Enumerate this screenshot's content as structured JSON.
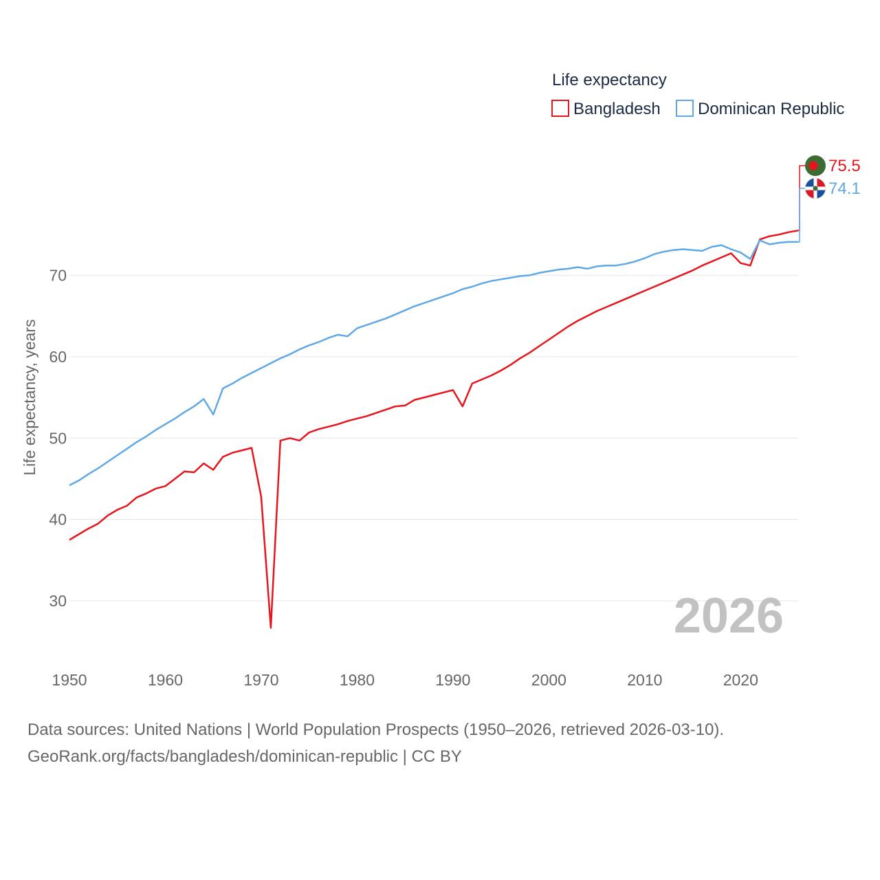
{
  "chart_data": {
    "type": "line",
    "title": "Life expectancy",
    "xlabel": "",
    "ylabel": "Life expectancy, years",
    "xlim": [
      1950,
      2026
    ],
    "ylim": [
      23,
      80
    ],
    "x_ticks": [
      1950,
      1960,
      1970,
      1980,
      1990,
      2000,
      2010,
      2020
    ],
    "y_ticks": [
      30,
      40,
      50,
      60,
      70
    ],
    "grid": true,
    "legend_position": "top-right",
    "year_label": "2026",
    "x": [
      1950,
      1951,
      1952,
      1953,
      1954,
      1955,
      1956,
      1957,
      1958,
      1959,
      1960,
      1961,
      1962,
      1963,
      1964,
      1965,
      1966,
      1967,
      1968,
      1969,
      1970,
      1971,
      1972,
      1973,
      1974,
      1975,
      1976,
      1977,
      1978,
      1979,
      1980,
      1981,
      1982,
      1983,
      1984,
      1985,
      1986,
      1987,
      1988,
      1989,
      1990,
      1991,
      1992,
      1993,
      1994,
      1995,
      1996,
      1997,
      1998,
      1999,
      2000,
      2001,
      2002,
      2003,
      2004,
      2005,
      2006,
      2007,
      2008,
      2009,
      2010,
      2011,
      2012,
      2013,
      2014,
      2015,
      2016,
      2017,
      2018,
      2019,
      2020,
      2021,
      2022,
      2023,
      2024,
      2025,
      2026
    ],
    "series": [
      {
        "name": "Bangladesh",
        "color": "#e8141c",
        "end_label": "75.5",
        "values": [
          37.5,
          38.2,
          38.9,
          39.5,
          40.5,
          41.2,
          41.7,
          42.7,
          43.2,
          43.8,
          44.1,
          45.0,
          45.9,
          45.8,
          46.9,
          46.1,
          47.7,
          48.2,
          48.5,
          48.8,
          42.8,
          26.7,
          49.7,
          50.0,
          49.7,
          50.7,
          51.1,
          51.4,
          51.7,
          52.1,
          52.4,
          52.7,
          53.1,
          53.5,
          53.9,
          54.0,
          54.7,
          55.0,
          55.3,
          55.6,
          55.9,
          53.9,
          56.7,
          57.2,
          57.7,
          58.3,
          59.0,
          59.8,
          60.5,
          61.3,
          62.1,
          62.9,
          63.7,
          64.4,
          65.0,
          65.6,
          66.1,
          66.6,
          67.1,
          67.6,
          68.1,
          68.6,
          69.1,
          69.6,
          70.1,
          70.6,
          71.2,
          71.7,
          72.2,
          72.7,
          71.5,
          71.2,
          74.4,
          74.8,
          75.0,
          75.3,
          75.5
        ]
      },
      {
        "name": "Dominican Republic",
        "color": "#5fa8e6",
        "end_label": "74.1",
        "values": [
          44.2,
          44.8,
          45.6,
          46.3,
          47.1,
          47.9,
          48.7,
          49.5,
          50.2,
          51.0,
          51.7,
          52.4,
          53.2,
          53.9,
          54.8,
          52.9,
          56.1,
          56.7,
          57.4,
          58.0,
          58.6,
          59.2,
          59.8,
          60.3,
          60.9,
          61.4,
          61.8,
          62.3,
          62.7,
          62.5,
          63.5,
          63.9,
          64.3,
          64.7,
          65.2,
          65.7,
          66.2,
          66.6,
          67.0,
          67.4,
          67.8,
          68.3,
          68.6,
          69.0,
          69.3,
          69.5,
          69.7,
          69.9,
          70.0,
          70.3,
          70.5,
          70.7,
          70.8,
          71.0,
          70.8,
          71.1,
          71.2,
          71.2,
          71.4,
          71.7,
          72.1,
          72.6,
          72.9,
          73.1,
          73.2,
          73.1,
          73.0,
          73.5,
          73.7,
          73.2,
          72.8,
          72.0,
          74.3,
          73.8,
          74.0,
          74.1,
          74.1
        ]
      }
    ]
  },
  "footer": {
    "line1": "Data sources: United Nations | World Population Prospects (1950–2026, retrieved 2026-03-10).",
    "line2": "GeoRank.org/facts/bangladesh/dominican-republic | CC BY"
  },
  "colors": {
    "grid": "#e6e6e6",
    "tick_text": "#666666",
    "legend_text": "#1a2a44",
    "watermark": "#c2c2c2",
    "flag_bd_green": "#3d6b32",
    "flag_bd_red": "#e8141c",
    "flag_do_blue": "#1a4fa0",
    "flag_do_red": "#d71a28"
  },
  "icons": {
    "bangladesh_marker": "bangladesh-flag-icon",
    "dominican_marker": "dominican-republic-flag-icon"
  }
}
